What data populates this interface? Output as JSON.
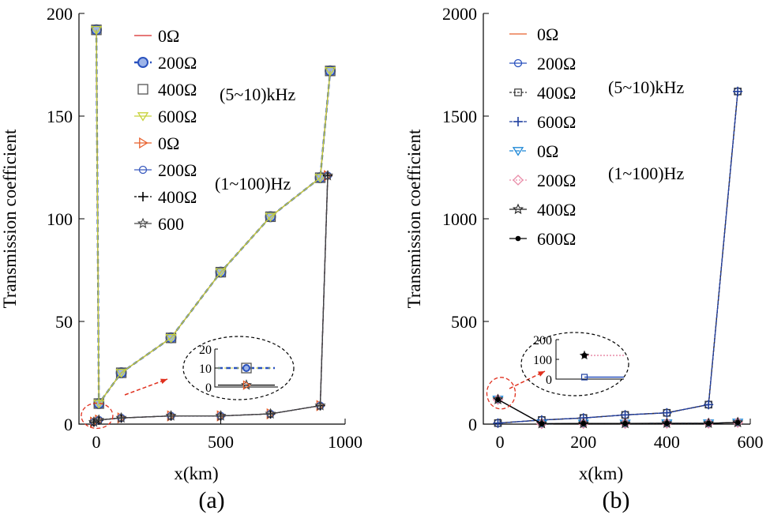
{
  "chart_data": [
    {
      "type": "line",
      "panel_label": "(a)",
      "xlabel": "x(km)",
      "ylabel": "Transmission coefficient",
      "xlim": [
        -70,
        1000
      ],
      "ylim": [
        0,
        200
      ],
      "xticks": [
        0,
        500,
        1000
      ],
      "yticks": [
        0,
        50,
        100,
        150,
        200
      ],
      "grid": false,
      "legend_position": "top-right",
      "legend": [
        "0Ω",
        "200Ω",
        "400Ω",
        "600Ω",
        "0Ω",
        "200Ω",
        "400Ω",
        "600"
      ],
      "annotations": [
        "(5~10)kHz",
        "(1~100)Hz"
      ],
      "series": [
        {
          "name": "0Ω",
          "group": "(5~10)kHz",
          "color": "#d62728",
          "marker": "none",
          "x": [
            0,
            10,
            100,
            300,
            500,
            700,
            900,
            940
          ],
          "y": [
            192,
            10,
            25,
            42,
            74,
            101,
            120,
            172
          ]
        },
        {
          "name": "200Ω",
          "group": "(5~10)kHz",
          "color": "#2a52be",
          "marker": "circle",
          "dash": "6,4",
          "x": [
            0,
            10,
            100,
            300,
            500,
            700,
            900,
            940
          ],
          "y": [
            192,
            10,
            25,
            42,
            74,
            101,
            120,
            172
          ]
        },
        {
          "name": "400Ω",
          "group": "(5~10)kHz",
          "color": "#555555",
          "marker": "square",
          "x": [
            0,
            10,
            100,
            300,
            500,
            700,
            900,
            940
          ],
          "y": [
            192,
            10,
            25,
            42,
            74,
            101,
            120,
            172
          ]
        },
        {
          "name": "600Ω",
          "group": "(5~10)kHz",
          "color": "#c8d23c",
          "marker": "triangle-down",
          "x": [
            0,
            10,
            100,
            300,
            500,
            700,
            900,
            940
          ],
          "y": [
            192,
            10,
            25,
            42,
            74,
            101,
            120,
            172
          ]
        },
        {
          "name": "0Ω",
          "group": "(1~100)Hz",
          "color": "#e8602c",
          "marker": "triangle-right",
          "x": [
            -10,
            10,
            100,
            300,
            500,
            700,
            900,
            930
          ],
          "y": [
            1,
            2,
            3,
            4,
            4,
            5,
            9,
            121
          ]
        },
        {
          "name": "200Ω",
          "group": "(1~100)Hz",
          "color": "#3a5bbf",
          "marker": "circle-open",
          "x": [
            -10,
            10,
            100,
            300,
            500,
            700,
            900,
            930
          ],
          "y": [
            1,
            2,
            3,
            4,
            4,
            5,
            9,
            121
          ]
        },
        {
          "name": "400Ω",
          "group": "(1~100)Hz",
          "color": "#000000",
          "marker": "plus",
          "dash": "3,2",
          "x": [
            -10,
            10,
            100,
            300,
            500,
            700,
            900,
            930
          ],
          "y": [
            1,
            2,
            3,
            4,
            4,
            5,
            9,
            121
          ]
        },
        {
          "name": "600",
          "group": "(1~100)Hz",
          "color": "#444444",
          "marker": "star",
          "x": [
            -10,
            10,
            100,
            300,
            500,
            700,
            900,
            930
          ],
          "y": [
            1,
            2,
            3,
            4,
            4,
            5,
            9,
            121
          ]
        }
      ],
      "inset": {
        "yticks": [
          0,
          10,
          20
        ],
        "values": {
          "upper": 10,
          "lower": 1
        }
      }
    },
    {
      "type": "line",
      "panel_label": "(b)",
      "xlabel": "x(km)",
      "ylabel": "Transmission coefficient",
      "xlim": [
        -40,
        600
      ],
      "ylim": [
        0,
        2000
      ],
      "xticks": [
        0,
        200,
        400,
        600
      ],
      "yticks": [
        0,
        500,
        1000,
        1500,
        2000
      ],
      "grid": false,
      "legend_position": "top-left",
      "legend": [
        "0Ω",
        "200Ω",
        "400Ω",
        "600Ω",
        "0Ω",
        "200Ω",
        "400Ω",
        "600Ω"
      ],
      "annotations": [
        "(5~10)kHz",
        "(1~100)Hz"
      ],
      "series": [
        {
          "name": "0Ω",
          "group": "(5~10)kHz",
          "color": "#e8602c",
          "marker": "none",
          "x": [
            -5,
            100,
            200,
            300,
            400,
            500,
            570
          ],
          "y": [
            5,
            20,
            30,
            45,
            55,
            95,
            1620
          ]
        },
        {
          "name": "200Ω",
          "group": "(5~10)kHz",
          "color": "#2a52be",
          "marker": "circle-open",
          "x": [
            -5,
            100,
            200,
            300,
            400,
            500,
            570
          ],
          "y": [
            5,
            20,
            30,
            45,
            55,
            95,
            1620
          ]
        },
        {
          "name": "400Ω",
          "group": "(5~10)kHz",
          "color": "#333333",
          "marker": "square-open",
          "dash": "3,2",
          "x": [
            -5,
            100,
            200,
            300,
            400,
            500,
            570
          ],
          "y": [
            5,
            20,
            30,
            45,
            55,
            95,
            1620
          ]
        },
        {
          "name": "600Ω",
          "group": "(5~10)kHz",
          "color": "#1f3f9f",
          "marker": "plus",
          "dash": "4,2",
          "x": [
            -5,
            100,
            200,
            300,
            400,
            500,
            570
          ],
          "y": [
            5,
            20,
            30,
            45,
            55,
            95,
            1620
          ]
        },
        {
          "name": "0Ω",
          "group": "(1~100)Hz",
          "color": "#1e88d6",
          "marker": "triangle-down",
          "dash": "5,3",
          "x": [
            -5,
            100,
            200,
            300,
            400,
            500,
            570
          ],
          "y": [
            120,
            2,
            3,
            3,
            4,
            4,
            8
          ]
        },
        {
          "name": "200Ω",
          "group": "(1~100)Hz",
          "color": "#e98ca8",
          "marker": "diamond",
          "dash": "2,2",
          "x": [
            -5,
            100,
            200,
            300,
            400,
            500,
            570
          ],
          "y": [
            120,
            2,
            3,
            3,
            4,
            4,
            8
          ]
        },
        {
          "name": "400Ω",
          "group": "(1~100)Hz",
          "color": "#222222",
          "marker": "star",
          "x": [
            -5,
            100,
            200,
            300,
            400,
            500,
            570
          ],
          "y": [
            120,
            2,
            3,
            3,
            4,
            4,
            8
          ]
        },
        {
          "name": "600Ω",
          "group": "(1~100)Hz",
          "color": "#000000",
          "marker": "dot",
          "x": [
            -5,
            100,
            200,
            300,
            400,
            500,
            570
          ],
          "y": [
            120,
            2,
            3,
            3,
            4,
            4,
            8
          ]
        }
      ],
      "inset": {
        "yticks": [
          0,
          100,
          200
        ],
        "values": {
          "upper": 120,
          "lower": 10
        }
      }
    }
  ]
}
